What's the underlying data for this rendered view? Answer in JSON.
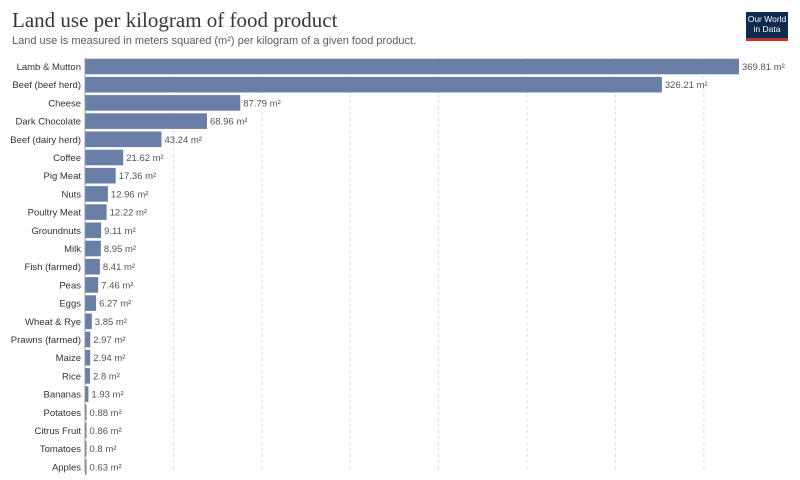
{
  "header": {
    "title": "Land use per kilogram of food product",
    "subtitle": "Land use is measured in meters squared (m²) per kilogram of a given food product."
  },
  "logo": {
    "line1": "Our World",
    "line2": "in Data"
  },
  "colors": {
    "bar": "#6a7fa7",
    "grid": "#dddddd",
    "title": "#373737"
  },
  "chart_data": {
    "type": "bar",
    "orientation": "horizontal",
    "unit": "m²",
    "categories": [
      "Lamb & Mutton",
      "Beef (beef herd)",
      "Cheese",
      "Dark Chocolate",
      "Beef (dairy herd)",
      "Coffee",
      "Pig Meat",
      "Nuts",
      "Poultry Meat",
      "Groundnuts",
      "Milk",
      "Fish (farmed)",
      "Peas",
      "Eggs",
      "Wheat & Rye",
      "Prawns (farmed)",
      "Maize",
      "Rice",
      "Bananas",
      "Potatoes",
      "Citrus Fruit",
      "Tomatoes",
      "Apples"
    ],
    "values": [
      369.81,
      326.21,
      87.79,
      68.96,
      43.24,
      21.62,
      17.36,
      12.96,
      12.22,
      9.11,
      8.95,
      8.41,
      7.46,
      6.27,
      3.85,
      2.97,
      2.94,
      2.8,
      1.93,
      0.88,
      0.86,
      0.8,
      0.63
    ],
    "value_labels": [
      "369.81 m²",
      "326.21 m²",
      "87.79 m²",
      "68.96 m²",
      "43.24 m²",
      "21.62 m²",
      "17.36 m²",
      "12.96 m²",
      "12.22 m²",
      "9.11 m²",
      "8.95 m²",
      "8.41 m²",
      "7.46 m²",
      "6.27 m²",
      "3.85 m²",
      "2.97 m²",
      "2.94 m²",
      "2.8 m²",
      "1.93 m²",
      "0.88 m²",
      "0.86 m²",
      "0.8 m²",
      "0.63 m²"
    ],
    "xlim": [
      0,
      369.81
    ],
    "grid": true
  }
}
